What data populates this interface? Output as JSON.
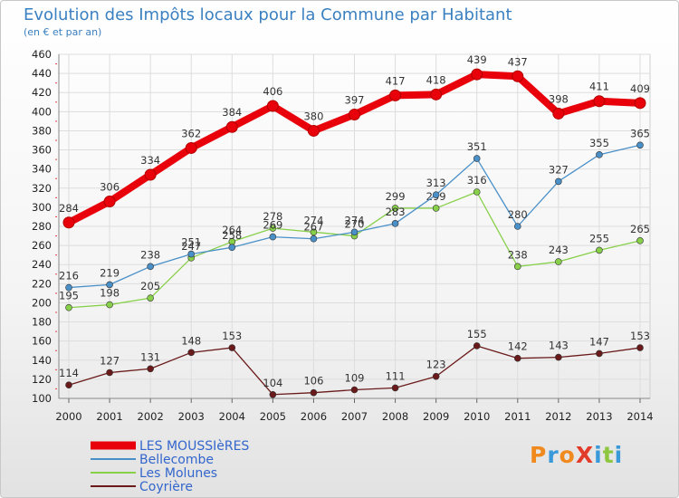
{
  "title": "Evolution des Impôts locaux pour la Commune par Habitant",
  "subtitle": "(en € et par an)",
  "logo": {
    "text": "ProXiti",
    "colors": [
      "#f08a1e",
      "#3a9ad9",
      "#f08a1e",
      "#e33b2a",
      "#3a9ad9",
      "#8dc63f",
      "#3a9ad9"
    ]
  },
  "chart_data": {
    "type": "line",
    "x": [
      "2000",
      "2001",
      "2002",
      "2003",
      "2004",
      "2005",
      "2006",
      "2007",
      "2008",
      "2009",
      "2010",
      "2011",
      "2012",
      "2013",
      "2014"
    ],
    "ylim": [
      100,
      460
    ],
    "yticks": [
      100,
      120,
      140,
      160,
      180,
      200,
      220,
      240,
      260,
      280,
      300,
      320,
      340,
      360,
      380,
      400,
      420,
      440,
      460
    ],
    "grid": true,
    "legend_position": "bottom-left",
    "series": [
      {
        "name": "LES MOUSSIèRES",
        "color": "#e8000b",
        "values": [
          284,
          306,
          334,
          362,
          384,
          406,
          380,
          397,
          417,
          418,
          439,
          437,
          398,
          411,
          409
        ]
      },
      {
        "name": "Bellecombe",
        "color": "#4a90c8",
        "values": [
          216,
          219,
          238,
          251,
          258,
          269,
          267,
          274,
          283,
          313,
          351,
          280,
          327,
          355,
          365
        ]
      },
      {
        "name": "Les Molunes",
        "color": "#88d04a",
        "values": [
          195,
          198,
          205,
          247,
          264,
          278,
          274,
          270,
          299,
          299,
          316,
          238,
          243,
          255,
          265
        ]
      },
      {
        "name": "Coyrière",
        "color": "#6a1a1a",
        "values": [
          114,
          127,
          131,
          148,
          153,
          104,
          106,
          109,
          111,
          123,
          155,
          142,
          143,
          147,
          153
        ]
      }
    ]
  }
}
